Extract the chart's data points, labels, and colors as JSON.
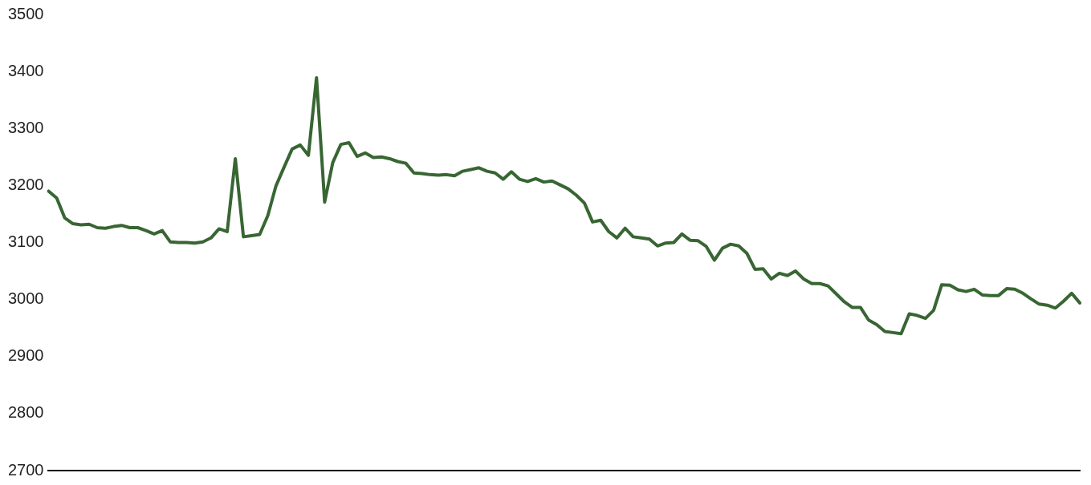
{
  "chart_data": {
    "type": "line",
    "categories": [
      null,
      null,
      null,
      null,
      null,
      null,
      null,
      null,
      null,
      null,
      null,
      null,
      null,
      null,
      null,
      null,
      null,
      null,
      null,
      null,
      null,
      null,
      null,
      null,
      null,
      null,
      null,
      null,
      null,
      null,
      null,
      null,
      null,
      null,
      null,
      null,
      null,
      null,
      null,
      null,
      null,
      null,
      null,
      null,
      null,
      null,
      null,
      null,
      null,
      null,
      null,
      null,
      null,
      null,
      null,
      null,
      null,
      null,
      null,
      null,
      null,
      null,
      null,
      null,
      null,
      null,
      null,
      null,
      null,
      null,
      null,
      null,
      null,
      null,
      null,
      null,
      null,
      null,
      null,
      null,
      null,
      null,
      null,
      null,
      null,
      null,
      null,
      null,
      null,
      null,
      null,
      null,
      null,
      null,
      null,
      null,
      null,
      null,
      null,
      null,
      null,
      null,
      null,
      null,
      null,
      null,
      null,
      null,
      null,
      null,
      null,
      null,
      null,
      null,
      null,
      null,
      null,
      null,
      null,
      null,
      null,
      null,
      null,
      null,
      null,
      null,
      null,
      null
    ],
    "series": [
      {
        "color": "#386633",
        "values": [
          3190,
          3178,
          3143,
          3133,
          3131,
          3132,
          3126,
          3125,
          3128,
          3130,
          3126,
          3126,
          3121,
          3115,
          3121,
          3101,
          3100,
          3100,
          3099,
          3101,
          3108,
          3124,
          3119,
          3247,
          3110,
          3112,
          3114,
          3147,
          3199,
          3232,
          3264,
          3271,
          3253,
          3389,
          3171,
          3240,
          3272,
          3275,
          3251,
          3257,
          3249,
          3250,
          3247,
          3242,
          3239,
          3222,
          3221,
          3219,
          3218,
          3219,
          3217,
          3225,
          3228,
          3231,
          3225,
          3222,
          3211,
          3224,
          3211,
          3207,
          3212,
          3206,
          3208,
          3201,
          3194,
          3183,
          3169,
          3136,
          3139,
          3119,
          3108,
          3125,
          3110,
          3108,
          3106,
          3094,
          3099,
          3100,
          3115,
          3104,
          3103,
          3093,
          3069,
          3090,
          3097,
          3094,
          3081,
          3053,
          3054,
          3036,
          3046,
          3042,
          3050,
          3036,
          3028,
          3028,
          3024,
          3010,
          2996,
          2986,
          2986,
          2964,
          2956,
          2944,
          2942,
          2940,
          2975,
          2972,
          2967,
          2981,
          3026,
          3025,
          3017,
          3014,
          3018,
          3008,
          3007,
          3007,
          3019,
          3018,
          3011,
          3001,
          2992,
          2990,
          2985,
          2997,
          3011,
          2994
        ]
      }
    ],
    "ylim": [
      2700,
      3500
    ],
    "yticks": [
      2700,
      2800,
      2900,
      3000,
      3100,
      3200,
      3300,
      3400,
      3500
    ],
    "grid": false,
    "legend": false,
    "tick_labels": "y",
    "marker": "none",
    "line_style": "solid"
  }
}
